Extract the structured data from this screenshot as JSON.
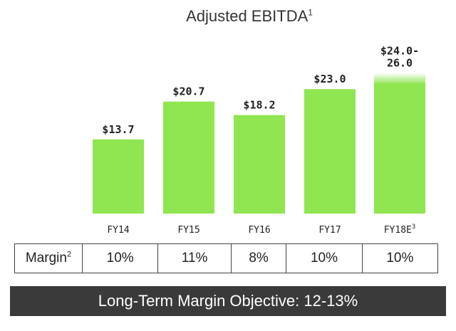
{
  "chart_data": {
    "type": "bar",
    "title": "Adjusted EBITDA",
    "title_sup": "1",
    "categories": [
      "FY14",
      "FY15",
      "FY16",
      "FY17",
      "FY18E"
    ],
    "category_sups": [
      "",
      "",
      "",
      "",
      "3"
    ],
    "values": [
      13.7,
      20.7,
      18.2,
      23.0,
      25.0
    ],
    "value_labels": [
      "$13.7",
      "$20.7",
      "$18.2",
      "$23.0",
      "$24.0-\n26.0"
    ],
    "estimate_range": [
      24.0,
      26.0
    ],
    "bar_color": "#8fe650",
    "ylim": [
      0,
      26
    ],
    "grid": false
  },
  "margin_table": {
    "label": "Margin",
    "label_sup": "2",
    "values": [
      "10%",
      "11%",
      "8%",
      "10%",
      "10%"
    ]
  },
  "banner": {
    "text": "Long-Term Margin Objective: 12-13%"
  }
}
